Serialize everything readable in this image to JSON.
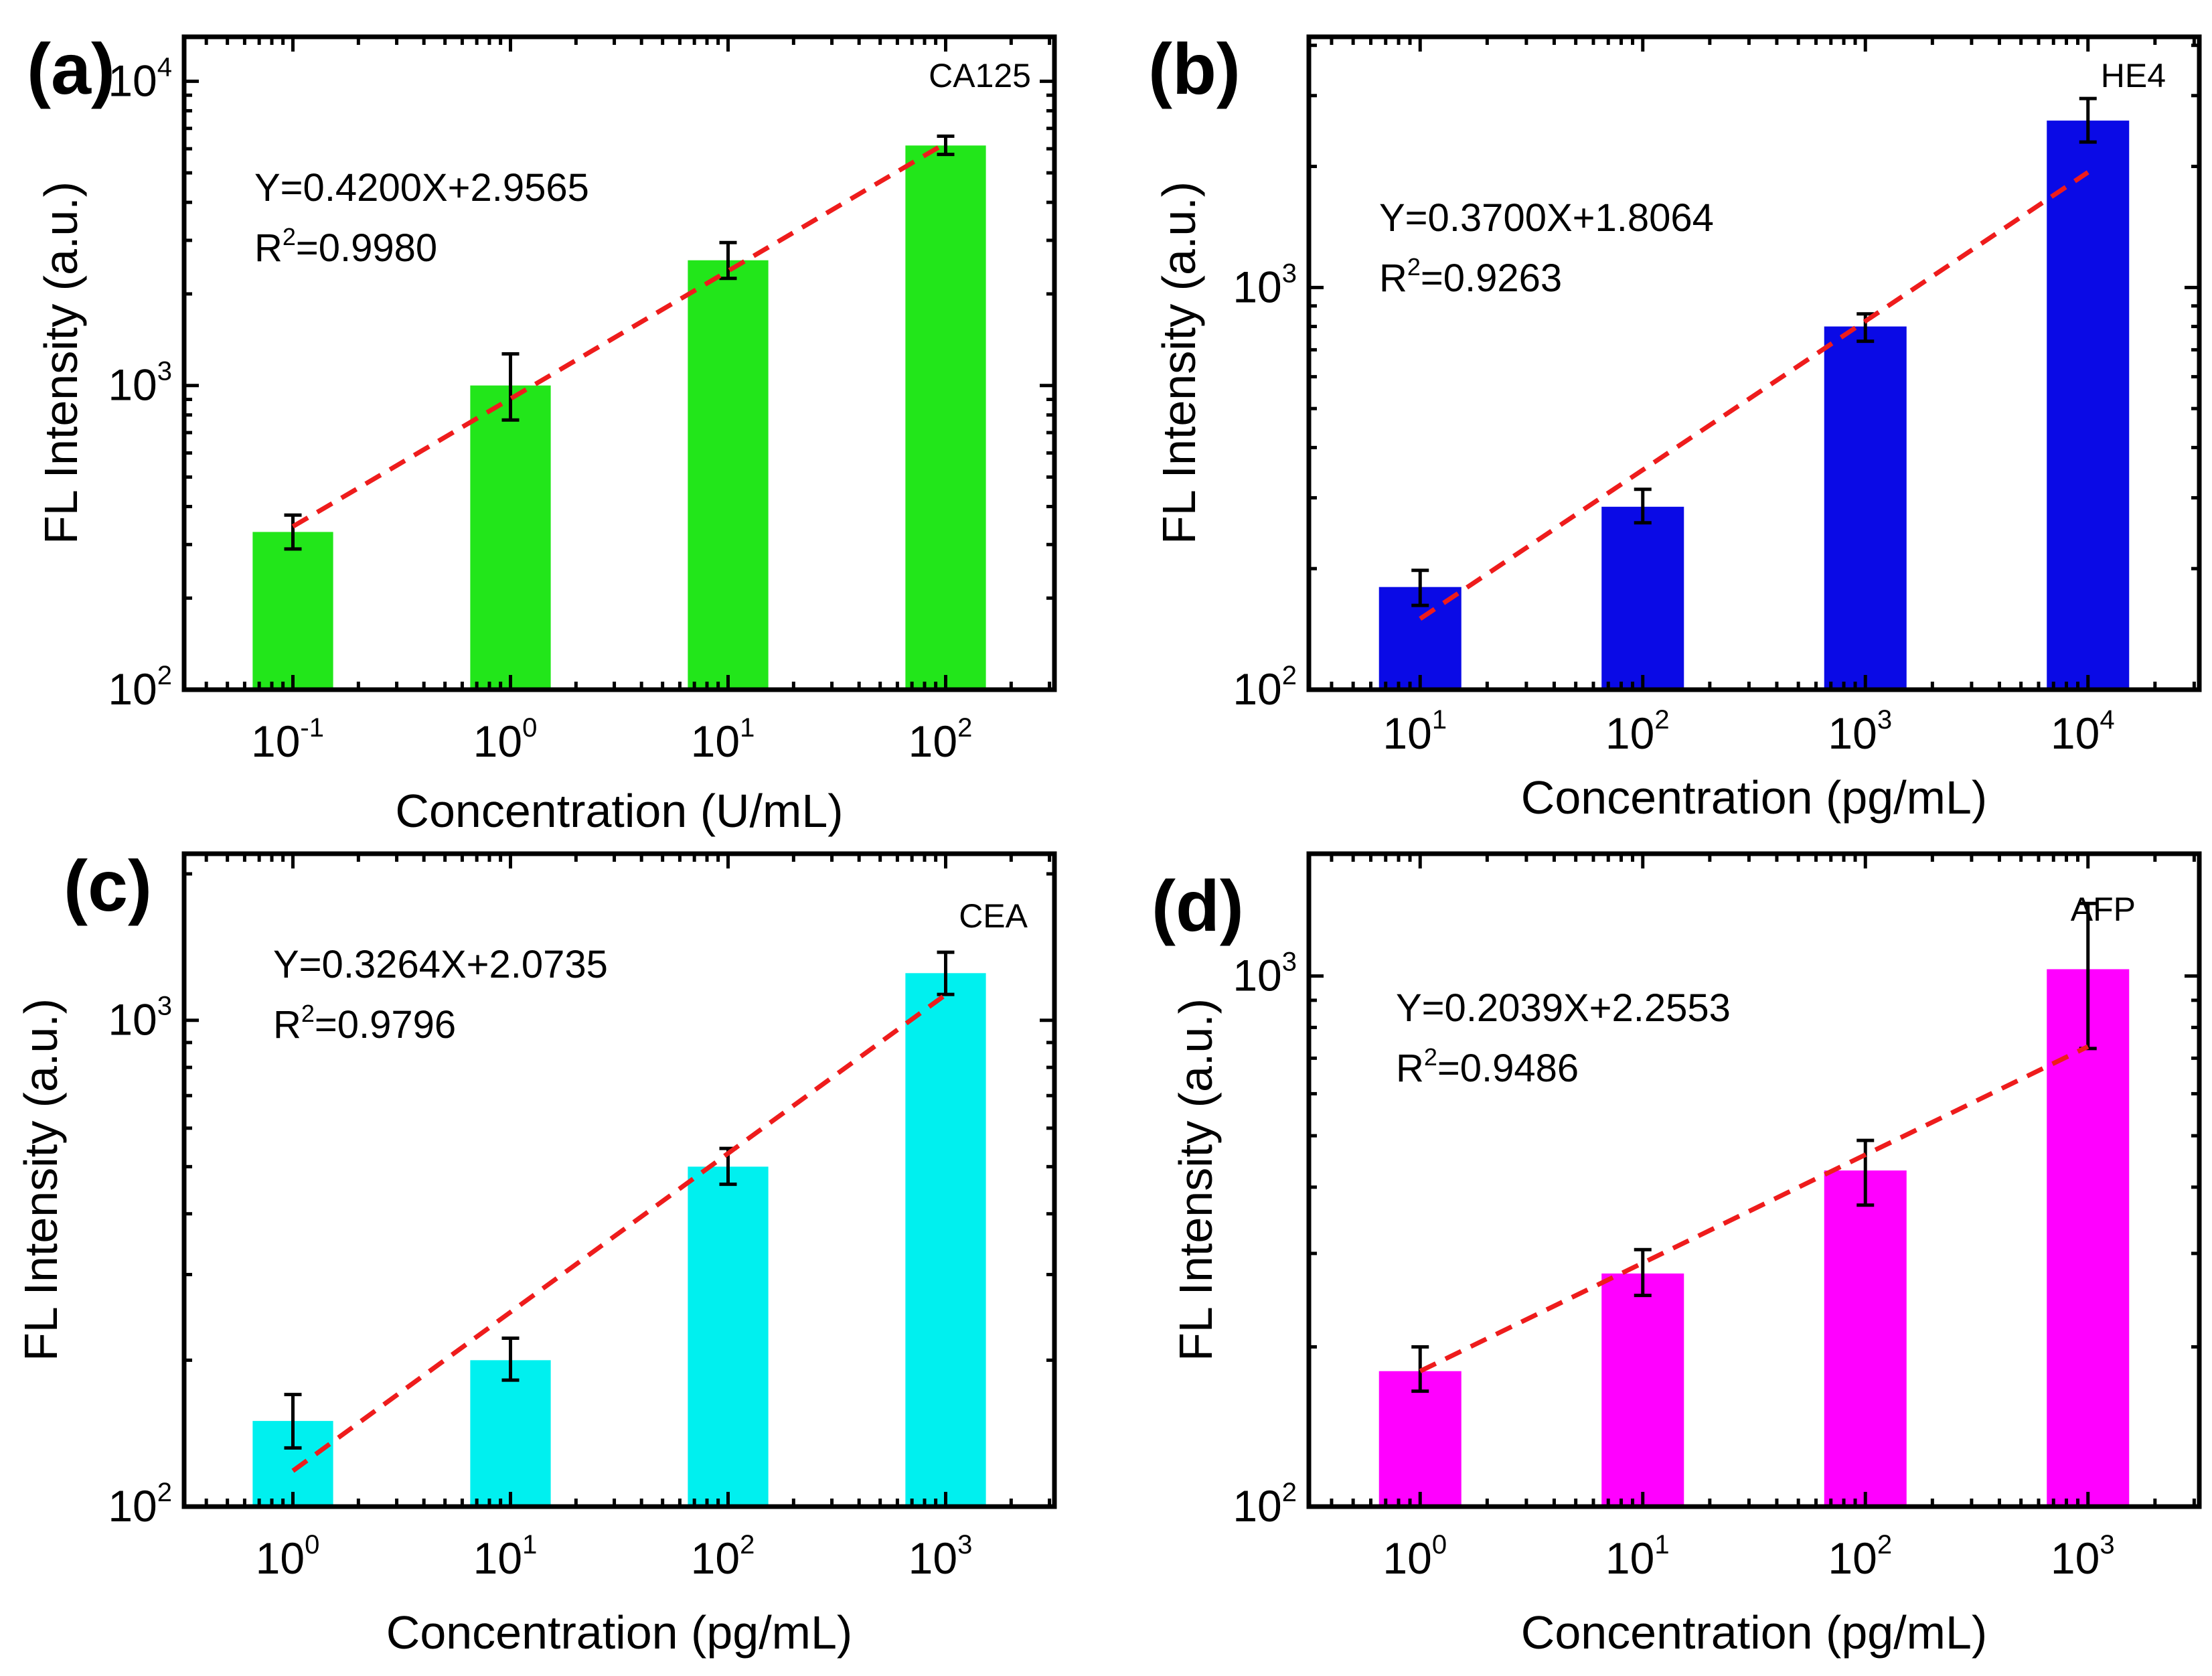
{
  "chart_data": [
    {
      "type": "bar",
      "panel": "(a)",
      "marker": "CA125",
      "xlabel": "Concentration (U/mL)",
      "ylabel": "FL Intensity (a.u.)",
      "yscale": "log",
      "ylim": [
        100,
        14000
      ],
      "yticks": [
        {
          "base": "10",
          "exp": "2",
          "value": 100
        },
        {
          "base": "10",
          "exp": "3",
          "value": 1000
        },
        {
          "base": "10",
          "exp": "4",
          "value": 10000
        }
      ],
      "categories": [
        {
          "base": "10",
          "exp": "-1"
        },
        {
          "base": "10",
          "exp": "0"
        },
        {
          "base": "10",
          "exp": "1"
        },
        {
          "base": "10",
          "exp": "2"
        }
      ],
      "values": [
        330,
        1000,
        2580,
        6150
      ],
      "errors": [
        [
          290,
          375
        ],
        [
          770,
          1270
        ],
        [
          2250,
          2950
        ],
        [
          5750,
          6600
        ]
      ],
      "bar_color": "#22e61a",
      "fit": {
        "equation": "Y=0.4200X+2.9565",
        "r2_prefix": "R",
        "r2_exp": "2",
        "r2_value": "=0.9980",
        "slope": 0.42,
        "intercept": 2.9565,
        "x": [
          -1,
          2
        ]
      }
    },
    {
      "type": "bar",
      "panel": "(b)",
      "marker": "HE4",
      "xlabel": "Concentration (pg/mL)",
      "ylabel": "FL Intensity (a.u.)",
      "yscale": "log",
      "ylim": [
        100,
        4200
      ],
      "yticks": [
        {
          "base": "10",
          "exp": "2",
          "value": 100
        },
        {
          "base": "10",
          "exp": "3",
          "value": 1000
        }
      ],
      "categories": [
        {
          "base": "10",
          "exp": "1"
        },
        {
          "base": "10",
          "exp": "2"
        },
        {
          "base": "10",
          "exp": "3"
        },
        {
          "base": "10",
          "exp": "4"
        }
      ],
      "values": [
        180,
        285,
        800,
        2600
      ],
      "errors": [
        [
          162,
          198
        ],
        [
          260,
          315
        ],
        [
          735,
          860
        ],
        [
          2300,
          2950
        ]
      ],
      "bar_color": "#0a0ae6",
      "fit": {
        "equation": "Y=0.3700X+1.8064",
        "r2_prefix": "R",
        "r2_exp": "2",
        "r2_value": "=0.9263",
        "slope": 0.37,
        "intercept": 1.8064,
        "x": [
          1,
          4
        ]
      }
    },
    {
      "type": "bar",
      "panel": "(c)",
      "marker": "CEA",
      "xlabel": "Concentration (pg/mL)",
      "ylabel": "FL Intensity (a.u.)",
      "yscale": "log",
      "ylim": [
        100,
        2200
      ],
      "yticks": [
        {
          "base": "10",
          "exp": "2",
          "value": 100
        },
        {
          "base": "10",
          "exp": "3",
          "value": 1000
        }
      ],
      "categories": [
        {
          "base": "10",
          "exp": "0"
        },
        {
          "base": "10",
          "exp": "1"
        },
        {
          "base": "10",
          "exp": "2"
        },
        {
          "base": "10",
          "exp": "3"
        }
      ],
      "values": [
        150,
        200,
        500,
        1250
      ],
      "errors": [
        [
          132,
          170
        ],
        [
          182,
          222
        ],
        [
          460,
          545
        ],
        [
          1130,
          1380
        ]
      ],
      "bar_color": "#00f0ef",
      "fit": {
        "equation": "Y=0.3264X+2.0735",
        "r2_prefix": "R",
        "r2_exp": "2",
        "r2_value": "=0.9796",
        "slope": 0.3264,
        "intercept": 2.0735,
        "x": [
          0,
          3
        ]
      }
    },
    {
      "type": "bar",
      "panel": "(d)",
      "marker": "AFP",
      "xlabel": "Concentration (pg/mL)",
      "ylabel": "FL Intensity (a.u.)",
      "yscale": "log",
      "ylim": [
        100,
        1700
      ],
      "yticks": [
        {
          "base": "10",
          "exp": "2",
          "value": 100
        },
        {
          "base": "10",
          "exp": "3",
          "value": 1000
        }
      ],
      "categories": [
        {
          "base": "10",
          "exp": "0"
        },
        {
          "base": "10",
          "exp": "1"
        },
        {
          "base": "10",
          "exp": "2"
        },
        {
          "base": "10",
          "exp": "3"
        }
      ],
      "values": [
        180,
        275,
        430,
        1030
      ],
      "errors": [
        [
          165,
          200
        ],
        [
          250,
          305
        ],
        [
          370,
          490
        ],
        [
          730,
          1370
        ]
      ],
      "bar_color": "#ff00ff",
      "fit": {
        "equation": "Y=0.2039X+2.2553",
        "r2_prefix": "R",
        "r2_exp": "2",
        "r2_value": "=0.9486",
        "slope": 0.2039,
        "intercept": 2.2553,
        "x": [
          0,
          3
        ]
      }
    }
  ]
}
